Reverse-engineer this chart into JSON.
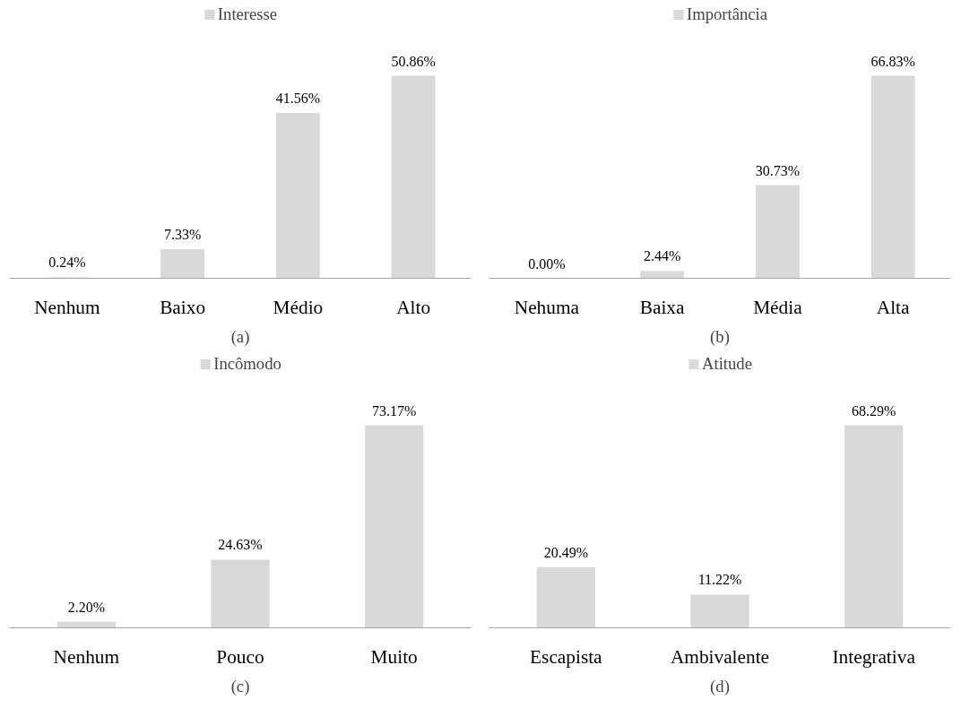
{
  "chart_data": [
    {
      "type": "bar",
      "categories": [
        "Nenhum",
        "Baixo",
        "Médio",
        "Alto"
      ],
      "series": [
        {
          "name": "Interesse",
          "color": "#d9d9d9",
          "values": [
            0.24,
            7.33,
            41.56,
            50.86
          ],
          "value_labels": [
            "0.24%",
            "7.33%",
            "41.56%",
            "50.86%"
          ]
        }
      ],
      "legend": "top",
      "grid": false,
      "annotations": [
        "(a)"
      ]
    },
    {
      "type": "bar",
      "categories": [
        "Nehuma",
        "Baixa",
        "Média",
        "Alta"
      ],
      "series": [
        {
          "name": "Importância",
          "color": "#d9d9d9",
          "values": [
            0.0,
            2.44,
            30.73,
            66.83
          ],
          "value_labels": [
            "0.00%",
            "2.44%",
            "30.73%",
            "66.83%"
          ]
        }
      ],
      "legend": "top",
      "grid": false,
      "annotations": [
        "(b)"
      ]
    },
    {
      "type": "bar",
      "categories": [
        "Nenhum",
        "Pouco",
        "Muito"
      ],
      "series": [
        {
          "name": "Incômodo",
          "color": "#d9d9d9",
          "values": [
            2.2,
            24.63,
            73.17
          ],
          "value_labels": [
            "2.20%",
            "24.63%",
            "73.17%"
          ]
        }
      ],
      "legend": "top",
      "grid": false,
      "annotations": [
        "(c)"
      ]
    },
    {
      "type": "bar",
      "categories": [
        "Escapista",
        "Ambivalente",
        "Integrativa"
      ],
      "series": [
        {
          "name": "Atitude",
          "color": "#d9d9d9",
          "values": [
            20.49,
            11.22,
            68.29
          ],
          "value_labels": [
            "20.49%",
            "11.22%",
            "68.29%"
          ]
        }
      ],
      "legend": "top",
      "grid": false,
      "annotations": [
        "(d)"
      ]
    }
  ]
}
